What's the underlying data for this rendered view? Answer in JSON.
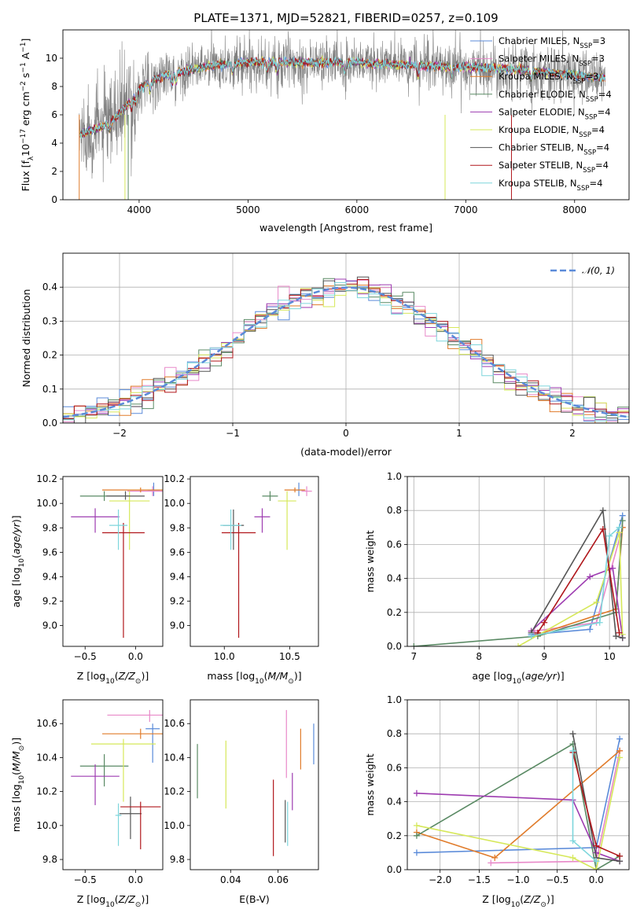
{
  "title": "PLATE=1371, MJD=52821, FIBERID=0257, z=0.109",
  "colors": {
    "Chabrier MILES": "#5b8bd9",
    "Salpeter MILES": "#e889c9",
    "Kroupa MILES": "#e07b2a",
    "Chabrier ELODIE": "#5a8a64",
    "Salpeter ELODIE": "#9d3bb0",
    "Kroupa ELODIE": "#d6e85a",
    "Chabrier STELIB": "#555555",
    "Salpeter STELIB": "#b0161b",
    "Kroupa STELIB": "#7dd6dc"
  },
  "chart_data": [
    {
      "type": "line",
      "panel": "spectrum",
      "title": "PLATE=1371, MJD=52821, FIBERID=0257, z=0.109",
      "xlabel": "wavelength [Angstrom, rest frame]",
      "ylabel": "Flux [fλ10⁻¹⁷ erg cm⁻² s⁻¹ A⁻¹]",
      "xlim": [
        3300,
        8500
      ],
      "ylim": [
        0,
        12
      ],
      "xticks": [
        4000,
        5000,
        6000,
        7000,
        8000
      ],
      "yticks": [
        0,
        2,
        4,
        6,
        8,
        10
      ],
      "x_range": [
        3450,
        8280
      ],
      "continuum": {
        "x": [
          3450,
          3600,
          3700,
          3800,
          3900,
          4000,
          4100,
          4300,
          4500,
          4700,
          5000,
          5500,
          6000,
          6500,
          7000,
          7500,
          8000,
          8280
        ],
        "y": [
          4.6,
          5.0,
          5.3,
          5.9,
          6.8,
          7.8,
          8.4,
          8.9,
          9.2,
          9.5,
          9.7,
          9.7,
          9.7,
          9.5,
          9.4,
          9.2,
          8.8,
          8.6
        ]
      },
      "legend_position": "upper right",
      "legend": [
        {
          "label": "Chabrier MILES, N",
          "sub": "SSP",
          "tail": "=3"
        },
        {
          "label": "Salpeter MILES, N",
          "sub": "SSP",
          "tail": "=3"
        },
        {
          "label": "Kroupa MILES, N",
          "sub": "SSP",
          "tail": "=3"
        },
        {
          "label": "Chabrier ELODIE, N",
          "sub": "SSP",
          "tail": "=4"
        },
        {
          "label": "Salpeter ELODIE, N",
          "sub": "SSP",
          "tail": "=4"
        },
        {
          "label": "Kroupa ELODIE, N",
          "sub": "SSP",
          "tail": "=4"
        },
        {
          "label": "Chabrier STELIB, N",
          "sub": "SSP",
          "tail": "=4"
        },
        {
          "label": "Salpeter STELIB, N",
          "sub": "SSP",
          "tail": "=4"
        },
        {
          "label": "Kroupa STELIB, N",
          "sub": "SSP",
          "tail": "=4"
        }
      ]
    },
    {
      "type": "histogram",
      "panel": "residuals",
      "xlabel": "(data-model)/error",
      "ylabel": "Normed distribution",
      "xlim": [
        -2.5,
        2.5
      ],
      "ylim": [
        0,
        0.5
      ],
      "xticks": [
        -2,
        -1,
        0,
        1,
        2
      ],
      "yticks": [
        0.0,
        0.1,
        0.2,
        0.3,
        0.4
      ],
      "bin_width": 0.1,
      "legend": "𝒩(0, 1)",
      "legend_position": "upper right",
      "grid": true
    },
    {
      "type": "scatter",
      "panel": "age-vs-Z",
      "xlabel": "Z [log10(Z/Z⊙)]",
      "ylabel": "age [log10(age/yr)]",
      "xlim": [
        -0.72,
        0.27
      ],
      "ylim": [
        8.83,
        10.22
      ],
      "xticks": [
        -0.5,
        0.0
      ],
      "yticks": [
        9.0,
        9.2,
        9.4,
        9.6,
        9.8,
        10.0,
        10.2
      ],
      "points": [
        {
          "model": "Chabrier MILES",
          "x": 0.18,
          "y": 10.11,
          "xerr": 0.06,
          "yerr": [
            0.05,
            0.06
          ]
        },
        {
          "model": "Salpeter MILES",
          "x": 0.17,
          "y": 10.1,
          "xerr": 0.25,
          "yerr": [
            0.04,
            0.04
          ]
        },
        {
          "model": "Kroupa MILES",
          "x": 0.05,
          "y": 10.11,
          "xerr": 0.38,
          "yerr": [
            0.02,
            0.02
          ]
        },
        {
          "model": "Chabrier ELODIE",
          "x": -0.31,
          "y": 10.06,
          "xerr": 0.24,
          "yerr": [
            0.04,
            0.04
          ]
        },
        {
          "model": "Salpeter ELODIE",
          "x": -0.4,
          "y": 9.89,
          "xerr": 0.24,
          "yerr": [
            0.13,
            0.07
          ]
        },
        {
          "model": "Kroupa ELODIE",
          "x": -0.06,
          "y": 10.02,
          "xerr": 0.2,
          "yerr": [
            0.4,
            0.08
          ]
        },
        {
          "model": "Chabrier STELIB",
          "x": -0.1,
          "y": 10.06,
          "xerr": 0.19,
          "yerr": [
            0.03,
            0.04
          ]
        },
        {
          "model": "Salpeter STELIB",
          "x": -0.12,
          "y": 9.76,
          "xerr": 0.21,
          "yerr": [
            0.86,
            0.08
          ]
        },
        {
          "model": "Kroupa STELIB",
          "x": -0.17,
          "y": 9.82,
          "xerr": 0.09,
          "yerr": [
            0.2,
            0.13
          ]
        }
      ]
    },
    {
      "type": "scatter",
      "panel": "age-vs-mass",
      "xlabel": "mass [log10(M/M⊙)]",
      "ylabel": "",
      "xlim": [
        9.74,
        10.72
      ],
      "ylim": [
        8.83,
        10.22
      ],
      "xticks": [
        10.0,
        10.5
      ],
      "yticks": [
        9.0,
        9.2,
        9.4,
        9.6,
        9.8,
        10.0,
        10.2
      ],
      "points": [
        {
          "model": "Chabrier MILES",
          "x": 10.57,
          "y": 10.11,
          "xerr": 0.04,
          "yerr": [
            0.05,
            0.06
          ]
        },
        {
          "model": "Salpeter MILES",
          "x": 10.63,
          "y": 10.1,
          "xerr": 0.04,
          "yerr": [
            0.04,
            0.04
          ]
        },
        {
          "model": "Kroupa MILES",
          "x": 10.54,
          "y": 10.11,
          "xerr": 0.08,
          "yerr": [
            0.02,
            0.02
          ]
        },
        {
          "model": "Chabrier ELODIE",
          "x": 10.35,
          "y": 10.06,
          "xerr": 0.06,
          "yerr": [
            0.04,
            0.04
          ]
        },
        {
          "model": "Salpeter ELODIE",
          "x": 10.29,
          "y": 9.89,
          "xerr": 0.06,
          "yerr": [
            0.13,
            0.07
          ]
        },
        {
          "model": "Kroupa ELODIE",
          "x": 10.48,
          "y": 10.02,
          "xerr": 0.07,
          "yerr": [
            0.4,
            0.08
          ]
        },
        {
          "model": "Chabrier STELIB",
          "x": 10.07,
          "y": 9.82,
          "xerr": 0.08,
          "yerr": [
            0.2,
            0.13
          ]
        },
        {
          "model": "Salpeter STELIB",
          "x": 10.11,
          "y": 9.76,
          "xerr": 0.13,
          "yerr": [
            0.86,
            0.08
          ]
        },
        {
          "model": "Kroupa STELIB",
          "x": 10.05,
          "y": 9.82,
          "xerr": 0.08,
          "yerr": [
            0.2,
            0.13
          ]
        }
      ]
    },
    {
      "type": "line",
      "panel": "mass-weight-vs-age",
      "xlabel": "age [log10(age/yr)]",
      "ylabel": "mass weight",
      "xlim": [
        6.9,
        10.3
      ],
      "ylim": [
        0,
        1
      ],
      "xticks": [
        7,
        8,
        9,
        10
      ],
      "yticks": [
        0.0,
        0.2,
        0.4,
        0.6,
        0.8,
        1.0
      ],
      "grid": true,
      "series": [
        {
          "model": "Chabrier MILES",
          "x": [
            8.8,
            9.7,
            10.2
          ],
          "y": [
            0.07,
            0.1,
            0.77
          ]
        },
        {
          "model": "Salpeter MILES",
          "x": [
            8.85,
            9.8,
            10.2
          ],
          "y": [
            0.09,
            0.14,
            0.7
          ]
        },
        {
          "model": "Kroupa MILES",
          "x": [
            8.9,
            10.1,
            10.2
          ],
          "y": [
            0.07,
            0.22,
            0.7
          ]
        },
        {
          "model": "Chabrier ELODIE",
          "x": [
            7.0,
            8.9,
            10.1,
            10.2
          ],
          "y": [
            0.0,
            0.06,
            0.2,
            0.74
          ]
        },
        {
          "model": "Salpeter ELODIE",
          "x": [
            8.8,
            9.7,
            10.05,
            10.2
          ],
          "y": [
            0.09,
            0.41,
            0.46,
            0.05
          ]
        },
        {
          "model": "Kroupa ELODIE",
          "x": [
            8.6,
            9.8,
            10.15,
            10.2
          ],
          "y": [
            0.0,
            0.26,
            0.67,
            0.07
          ]
        },
        {
          "model": "Chabrier STELIB",
          "x": [
            8.8,
            9.9,
            10.1,
            10.2
          ],
          "y": [
            0.08,
            0.8,
            0.06,
            0.05
          ]
        },
        {
          "model": "Salpeter STELIB",
          "x": [
            8.9,
            9.0,
            9.9,
            10.15
          ],
          "y": [
            0.08,
            0.14,
            0.69,
            0.08
          ]
        },
        {
          "model": "Kroupa STELIB",
          "x": [
            8.8,
            9.85,
            10.0,
            10.15
          ],
          "y": [
            0.06,
            0.14,
            0.65,
            0.7
          ]
        }
      ]
    },
    {
      "type": "scatter",
      "panel": "mass-vs-Z",
      "xlabel": "Z [log10(Z/Z⊙)]",
      "ylabel": "mass [log10(M/M⊙)]",
      "xlim": [
        -0.72,
        0.27
      ],
      "ylim": [
        9.74,
        10.74
      ],
      "xticks": [
        -0.5,
        0.0
      ],
      "yticks": [
        9.8,
        10.0,
        10.2,
        10.4,
        10.6
      ],
      "points": [
        {
          "model": "Chabrier MILES",
          "x": 0.17,
          "y": 10.57,
          "xerr": 0.07,
          "yerr": [
            0.2,
            0.03
          ]
        },
        {
          "model": "Salpeter MILES",
          "x": 0.14,
          "y": 10.65,
          "xerr": 0.42,
          "yerr": [
            0.04,
            0.03
          ]
        },
        {
          "model": "Kroupa MILES",
          "x": 0.05,
          "y": 10.54,
          "xerr": 0.38,
          "yerr": [
            0.03,
            0.03
          ]
        },
        {
          "model": "Chabrier ELODIE",
          "x": -0.31,
          "y": 10.35,
          "xerr": 0.24,
          "yerr": [
            0.12,
            0.07
          ]
        },
        {
          "model": "Salpeter ELODIE",
          "x": -0.4,
          "y": 10.29,
          "xerr": 0.24,
          "yerr": [
            0.17,
            0.07
          ]
        },
        {
          "model": "Kroupa ELODIE",
          "x": -0.12,
          "y": 10.48,
          "xerr": 0.32,
          "yerr": [
            0.34,
            0.03
          ]
        },
        {
          "model": "Chabrier STELIB",
          "x": -0.05,
          "y": 10.07,
          "xerr": 0.11,
          "yerr": [
            0.15,
            0.1
          ]
        },
        {
          "model": "Salpeter STELIB",
          "x": 0.05,
          "y": 10.11,
          "xerr": 0.2,
          "yerr": [
            0.25,
            0.03
          ]
        },
        {
          "model": "Kroupa STELIB",
          "x": -0.17,
          "y": 10.06,
          "xerr": 0.03,
          "yerr": [
            0.18,
            0.07
          ]
        }
      ]
    },
    {
      "type": "errorbar",
      "panel": "mass-vs-EBV",
      "xlabel": "E(B-V)",
      "ylabel": "",
      "xlim": [
        0.023,
        0.077
      ],
      "ylim": [
        9.74,
        10.74
      ],
      "xticks": [
        0.04,
        0.06
      ],
      "yticks": [
        9.8,
        10.0,
        10.2,
        10.4,
        10.6
      ],
      "points": [
        {
          "model": "Chabrier ELODIE",
          "x": 0.026,
          "y": 10.32,
          "yerr": [
            0.16,
            0.16
          ]
        },
        {
          "model": "Kroupa ELODIE",
          "x": 0.038,
          "y": 10.3,
          "yerr": [
            0.2,
            0.2
          ]
        },
        {
          "model": "Salpeter STELIB",
          "x": 0.058,
          "y": 10.02,
          "yerr": [
            0.2,
            0.25
          ]
        },
        {
          "model": "Chabrier STELIB",
          "x": 0.063,
          "y": 10.0,
          "yerr": [
            0.1,
            0.15
          ]
        },
        {
          "model": "Salpeter MILES",
          "x": 0.0635,
          "y": 10.48,
          "yerr": [
            0.2,
            0.2
          ]
        },
        {
          "model": "Kroupa STELIB",
          "x": 0.064,
          "y": 10.04,
          "yerr": [
            0.16,
            0.1
          ]
        },
        {
          "model": "Salpeter ELODIE",
          "x": 0.066,
          "y": 10.21,
          "yerr": [
            0.12,
            0.1
          ]
        },
        {
          "model": "Kroupa MILES",
          "x": 0.0695,
          "y": 10.44,
          "yerr": [
            0.11,
            0.13
          ]
        },
        {
          "model": "Chabrier MILES",
          "x": 0.075,
          "y": 10.48,
          "yerr": [
            0.12,
            0.12
          ]
        }
      ]
    },
    {
      "type": "line",
      "panel": "mass-weight-vs-Z",
      "xlabel": "Z [log10(Z/Z⊙)]",
      "ylabel": "mass weight",
      "xlim": [
        -2.42,
        0.42
      ],
      "ylim": [
        0,
        1
      ],
      "xticks": [
        -2.0,
        -1.5,
        -1.0,
        -0.5,
        0.0
      ],
      "yticks": [
        0.0,
        0.2,
        0.4,
        0.6,
        0.8,
        1.0
      ],
      "grid": true,
      "series": [
        {
          "model": "Chabrier MILES",
          "x": [
            -2.3,
            0.0,
            0.3
          ],
          "y": [
            0.1,
            0.13,
            0.77
          ]
        },
        {
          "model": "Salpeter MILES",
          "x": [
            -1.35,
            0.0,
            0.3
          ],
          "y": [
            0.04,
            0.05,
            0.7
          ]
        },
        {
          "model": "Kroupa MILES",
          "x": [
            -2.3,
            -1.3,
            0.3
          ],
          "y": [
            0.22,
            0.07,
            0.7
          ]
        },
        {
          "model": "Chabrier ELODIE",
          "x": [
            -2.3,
            -0.3,
            0.0,
            0.3
          ],
          "y": [
            0.2,
            0.74,
            0.0,
            0.08
          ]
        },
        {
          "model": "Salpeter ELODIE",
          "x": [
            -2.3,
            -0.3,
            0.0,
            0.3
          ],
          "y": [
            0.45,
            0.41,
            0.1,
            0.05
          ]
        },
        {
          "model": "Kroupa ELODIE",
          "x": [
            -2.3,
            -0.3,
            0.0,
            0.3
          ],
          "y": [
            0.26,
            0.07,
            0.0,
            0.66
          ]
        },
        {
          "model": "Chabrier STELIB",
          "x": [
            -0.3,
            0.0,
            0.3
          ],
          "y": [
            0.8,
            0.07,
            0.05
          ]
        },
        {
          "model": "Salpeter STELIB",
          "x": [
            -0.3,
            0.0,
            0.3
          ],
          "y": [
            0.69,
            0.14,
            0.08
          ]
        },
        {
          "model": "Kroupa STELIB",
          "x": [
            -0.3,
            -0.3,
            0.0
          ],
          "y": [
            0.7,
            0.17,
            0.05
          ]
        }
      ]
    }
  ]
}
